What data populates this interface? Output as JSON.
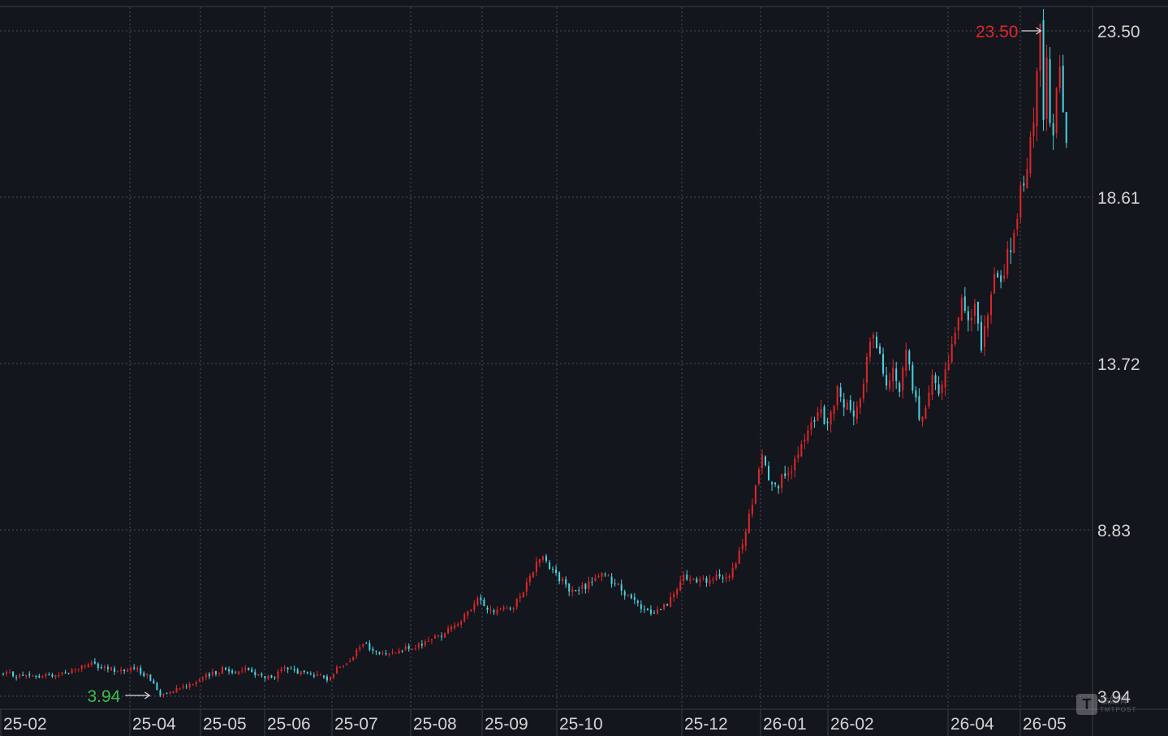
{
  "chart_data": {
    "type": "candlestick",
    "ylim": [
      3.94,
      23.5
    ],
    "y_ticks": [
      "23.50",
      "18.61",
      "13.72",
      "8.83",
      "3.94"
    ],
    "x_labels": [
      "25-02",
      "25-04",
      "25-05",
      "25-06",
      "25-07",
      "25-08",
      "25-09",
      "25-10",
      "25-12",
      "26-01",
      "26-02",
      "26-04",
      "26-05"
    ],
    "high_marker": "23.50",
    "low_marker": "3.94",
    "colors": {
      "up": "#e0262b",
      "down": "#4ad3e2",
      "grid": "#4a4f58",
      "background": "#13161c"
    },
    "price_path": [
      [
        0,
        4.6
      ],
      [
        10,
        4.5
      ],
      [
        20,
        4.65
      ],
      [
        26,
        4.9
      ],
      [
        31,
        4.75
      ],
      [
        36,
        4.7
      ],
      [
        40,
        4.75
      ],
      [
        44,
        4.55
      ],
      [
        48,
        4.0
      ],
      [
        52,
        4.15
      ],
      [
        57,
        4.3
      ],
      [
        63,
        4.55
      ],
      [
        67,
        4.75
      ],
      [
        70,
        4.65
      ],
      [
        74,
        4.75
      ],
      [
        78,
        4.55
      ],
      [
        82,
        4.45
      ],
      [
        86,
        4.75
      ],
      [
        90,
        4.65
      ],
      [
        94,
        4.6
      ],
      [
        99,
        4.45
      ],
      [
        103,
        4.85
      ],
      [
        107,
        5.1
      ],
      [
        110,
        5.5
      ],
      [
        113,
        5.25
      ],
      [
        117,
        5.15
      ],
      [
        121,
        5.35
      ],
      [
        125,
        5.3
      ],
      [
        130,
        5.6
      ],
      [
        134,
        5.75
      ],
      [
        138,
        6.05
      ],
      [
        142,
        6.35
      ],
      [
        145,
        6.75
      ],
      [
        148,
        6.55
      ],
      [
        150,
        6.35
      ],
      [
        153,
        6.65
      ],
      [
        156,
        6.5
      ],
      [
        159,
        7.1
      ],
      [
        162,
        7.7
      ],
      [
        165,
        8.1
      ],
      [
        167,
        7.8
      ],
      [
        170,
        7.4
      ],
      [
        174,
        7.0
      ],
      [
        178,
        7.15
      ],
      [
        182,
        7.55
      ],
      [
        185,
        7.4
      ],
      [
        188,
        7.2
      ],
      [
        191,
        6.85
      ],
      [
        194,
        6.6
      ],
      [
        197,
        6.4
      ],
      [
        201,
        6.5
      ],
      [
        205,
        6.9
      ],
      [
        208,
        7.4
      ],
      [
        212,
        7.3
      ],
      [
        216,
        7.35
      ],
      [
        220,
        7.45
      ],
      [
        223,
        7.6
      ],
      [
        226,
        8.4
      ],
      [
        229,
        9.6
      ],
      [
        232,
        11.1
      ],
      [
        234,
        10.4
      ],
      [
        237,
        10.2
      ],
      [
        240,
        10.5
      ],
      [
        243,
        11.0
      ],
      [
        246,
        11.7
      ],
      [
        249,
        12.3
      ],
      [
        252,
        12.0
      ],
      [
        255,
        12.9
      ],
      [
        258,
        12.4
      ],
      [
        261,
        12.3
      ],
      [
        264,
        13.8
      ],
      [
        266,
        14.7
      ],
      [
        268,
        14.0
      ],
      [
        270,
        13.1
      ],
      [
        272,
        13.6
      ],
      [
        274,
        12.9
      ],
      [
        276,
        14.2
      ],
      [
        278,
        13.0
      ],
      [
        280,
        12.1
      ],
      [
        282,
        12.5
      ],
      [
        284,
        13.5
      ],
      [
        286,
        12.8
      ],
      [
        289,
        13.8
      ],
      [
        291,
        14.4
      ],
      [
        293,
        15.5
      ],
      [
        295,
        15.0
      ],
      [
        297,
        15.6
      ],
      [
        299,
        14.3
      ],
      [
        301,
        15.0
      ],
      [
        303,
        16.3
      ],
      [
        305,
        16.0
      ],
      [
        307,
        16.9
      ],
      [
        309,
        17.3
      ],
      [
        311,
        18.7
      ],
      [
        313,
        19.6
      ],
      [
        315,
        20.8
      ],
      [
        316,
        22.4
      ],
      [
        317,
        23.5
      ],
      [
        318,
        21.0
      ],
      [
        319,
        22.4
      ],
      [
        320,
        21.0
      ],
      [
        321,
        20.5
      ],
      [
        322,
        21.8
      ],
      [
        323,
        22.7
      ],
      [
        324,
        21.0
      ],
      [
        325,
        20.3
      ]
    ]
  }
}
